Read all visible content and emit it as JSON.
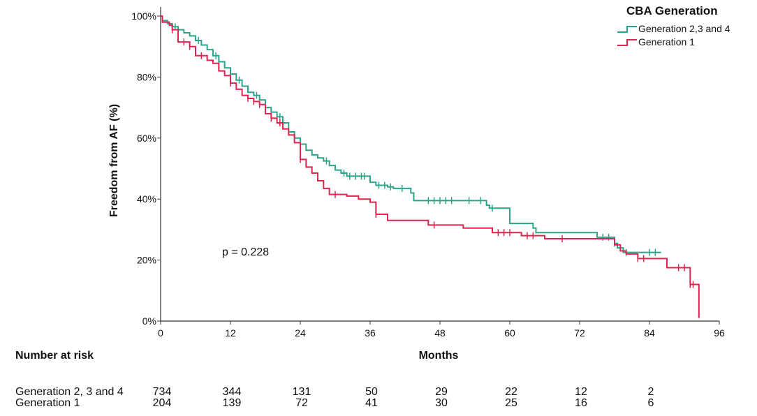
{
  "chart_data": {
    "type": "line",
    "subtype": "kaplan-meier-step",
    "xlabel": "Months",
    "ylabel": "Freedom from AF (%)",
    "xlim": [
      0,
      96
    ],
    "ylim": [
      0,
      100
    ],
    "x_ticks": [
      0,
      12,
      24,
      36,
      48,
      60,
      72,
      84,
      96
    ],
    "y_ticks": [
      0,
      20,
      40,
      60,
      80,
      100
    ],
    "y_tick_labels": [
      "0%",
      "20%",
      "40%",
      "60%",
      "80%",
      "100%"
    ],
    "grid": false,
    "legend": {
      "title": "CBA Generation",
      "position": "top-right",
      "entries": [
        "Generation 2,3 and 4",
        "Generation 1"
      ]
    },
    "annotation": "p = 0.228",
    "series": [
      {
        "name": "Generation 2,3 and 4",
        "color": "#2aa58a",
        "steps": [
          [
            0,
            100
          ],
          [
            0.3,
            98.5
          ],
          [
            1.2,
            97.5
          ],
          [
            2,
            96.5
          ],
          [
            3,
            95.5
          ],
          [
            4,
            94.5
          ],
          [
            5,
            93.5
          ],
          [
            6,
            92
          ],
          [
            7,
            90.5
          ],
          [
            8,
            89
          ],
          [
            9,
            87
          ],
          [
            10,
            85
          ],
          [
            11,
            83
          ],
          [
            12,
            81
          ],
          [
            13,
            79
          ],
          [
            14,
            77
          ],
          [
            15,
            75
          ],
          [
            16,
            74
          ],
          [
            17,
            72.5
          ],
          [
            18,
            70
          ],
          [
            19,
            68.5
          ],
          [
            20,
            67
          ],
          [
            21,
            65
          ],
          [
            22,
            62
          ],
          [
            23,
            60
          ],
          [
            24,
            58
          ],
          [
            25,
            56
          ],
          [
            26,
            54.5
          ],
          [
            27,
            53.5
          ],
          [
            28,
            52.5
          ],
          [
            29,
            51
          ],
          [
            30,
            49.5
          ],
          [
            31,
            48.5
          ],
          [
            32,
            47.5
          ],
          [
            36,
            45.5
          ],
          [
            37,
            44.5
          ],
          [
            39,
            44
          ],
          [
            40,
            43.5
          ],
          [
            43,
            42
          ],
          [
            43.5,
            41
          ],
          [
            43.5,
            39.5
          ],
          [
            56,
            38
          ],
          [
            56.5,
            37
          ],
          [
            60,
            35
          ],
          [
            60,
            32
          ],
          [
            64,
            30.5
          ],
          [
            64.5,
            29
          ],
          [
            75,
            27.5
          ],
          [
            78,
            25.5
          ],
          [
            78.5,
            24
          ],
          [
            79.5,
            22.5
          ],
          [
            86,
            22.5
          ]
        ],
        "censor_x": [
          2.5,
          6.5,
          9.5,
          13.5,
          16.5,
          20.5,
          28.5,
          31.5,
          32.5,
          33.5,
          34.5,
          35,
          37.5,
          38.5,
          39.5,
          41.5,
          46,
          47,
          48,
          49,
          50,
          53,
          55,
          57,
          76,
          77,
          78,
          80,
          84,
          85
        ]
      },
      {
        "name": "Generation 1",
        "color": "#e0234f",
        "steps": [
          [
            0,
            100
          ],
          [
            0.3,
            98
          ],
          [
            1.5,
            97
          ],
          [
            2,
            95.5
          ],
          [
            3,
            91.5
          ],
          [
            5,
            90
          ],
          [
            6,
            87
          ],
          [
            8,
            85.5
          ],
          [
            9,
            84.5
          ],
          [
            10,
            82
          ],
          [
            11,
            80.5
          ],
          [
            12,
            78
          ],
          [
            13,
            76
          ],
          [
            14,
            74
          ],
          [
            15,
            73
          ],
          [
            16,
            72
          ],
          [
            17,
            71
          ],
          [
            18,
            68
          ],
          [
            19,
            66.5
          ],
          [
            20,
            65
          ],
          [
            21,
            63
          ],
          [
            22,
            61
          ],
          [
            23,
            58.5
          ],
          [
            24,
            53
          ],
          [
            25,
            50.5
          ],
          [
            26,
            48.5
          ],
          [
            27,
            46
          ],
          [
            28,
            43.5
          ],
          [
            29,
            41.5
          ],
          [
            32,
            41
          ],
          [
            34,
            40
          ],
          [
            36,
            39
          ],
          [
            37,
            35
          ],
          [
            39,
            33
          ],
          [
            46,
            31.5
          ],
          [
            52,
            30.5
          ],
          [
            57,
            29
          ],
          [
            62,
            28
          ],
          [
            66,
            27
          ],
          [
            78,
            25
          ],
          [
            79,
            23
          ],
          [
            80,
            22
          ],
          [
            82,
            20.5
          ],
          [
            87,
            17.5
          ],
          [
            91,
            12
          ],
          [
            92.5,
            1
          ]
        ],
        "censor_x": [
          2,
          4,
          5,
          7,
          12,
          15,
          16,
          17,
          19,
          20.5,
          24,
          30,
          37,
          47,
          58,
          59,
          60,
          63,
          64,
          69,
          82,
          83,
          89,
          90,
          91,
          91.5
        ]
      }
    ],
    "number_at_risk": {
      "title": "Number at risk",
      "rows": [
        {
          "label": "Generation 2, 3 and 4",
          "values": [
            "734",
            "344",
            "131",
            "50",
            "29",
            "22",
            "12",
            "2"
          ]
        },
        {
          "label": "Generation 1",
          "values": [
            "204",
            "139",
            "72",
            "41",
            "30",
            "25",
            "16",
            "6"
          ]
        }
      ]
    }
  }
}
